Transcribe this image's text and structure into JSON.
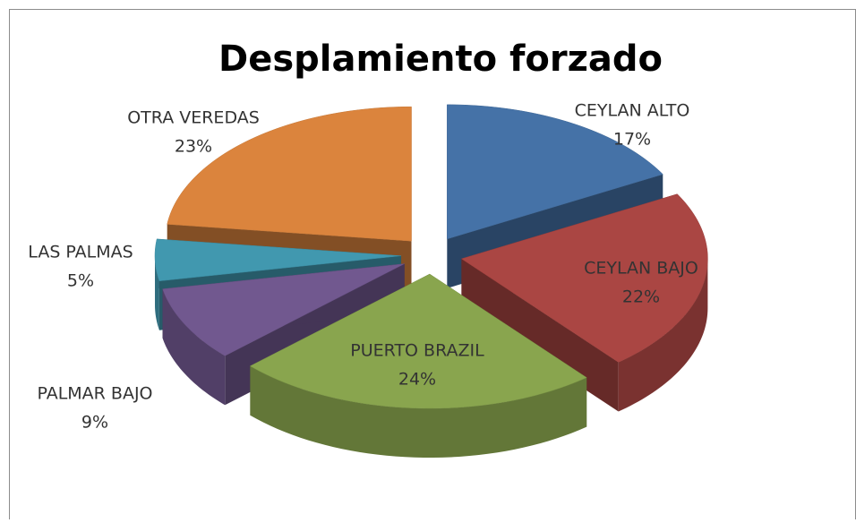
{
  "chart_data": {
    "type": "pie3d",
    "title": "Desplamiento forzado",
    "categories": [
      "CEYLAN ALTO",
      "CEYLAN BAJO",
      "PUERTO BRAZIL",
      "PALMAR BAJO",
      "LAS PALMAS",
      "OTRA VEREDAS"
    ],
    "values": [
      17,
      22,
      24,
      9,
      5,
      23
    ],
    "value_labels": [
      "17%",
      "22%",
      "24%",
      "9%",
      "5%",
      "23%"
    ],
    "colors": [
      "#4572a7",
      "#aa4643",
      "#89a54e",
      "#71588f",
      "#4198af",
      "#db843d"
    ]
  }
}
